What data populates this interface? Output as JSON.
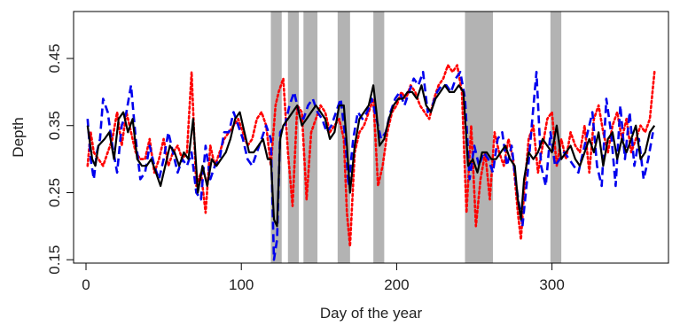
{
  "chart_data": {
    "type": "line",
    "xlabel": "Day of the year",
    "ylabel": "Depth",
    "xlim": [
      -8,
      375
    ],
    "ylim": [
      0.145,
      0.52
    ],
    "x_ticks": [
      0,
      100,
      200,
      300
    ],
    "x_tick_labels": [
      "0",
      "100",
      "200",
      "300"
    ],
    "y_ticks": [
      0.15,
      0.25,
      0.35,
      0.45
    ],
    "y_tick_labels": [
      "0.15",
      "0.25",
      "0.35",
      "0.45"
    ],
    "grid": false,
    "legend": "none",
    "shaded_intervals": [
      {
        "start": 119,
        "end": 126
      },
      {
        "start": 130,
        "end": 137
      },
      {
        "start": 140,
        "end": 149
      },
      {
        "start": 162,
        "end": 170
      },
      {
        "start": 185,
        "end": 192
      },
      {
        "start": 244,
        "end": 262
      },
      {
        "start": 299,
        "end": 306
      }
    ],
    "shade_color": "#b3b3b3",
    "series": [
      {
        "style": "solid",
        "color": "#000000",
        "x": [
          1,
          4,
          6,
          8,
          12,
          15,
          18,
          21,
          24,
          27,
          30,
          33,
          36,
          39,
          42,
          45,
          48,
          51,
          54,
          57,
          60,
          63,
          66,
          69,
          72,
          75,
          78,
          81,
          84,
          87,
          90,
          93,
          96,
          99,
          102,
          105,
          108,
          111,
          114,
          117,
          119,
          121,
          123,
          125,
          127,
          130,
          133,
          136,
          139,
          142,
          145,
          148,
          151,
          154,
          157,
          160,
          163,
          166,
          168,
          170,
          173,
          176,
          179,
          182,
          185,
          187,
          189,
          192,
          195,
          198,
          201,
          204,
          207,
          210,
          213,
          216,
          219,
          222,
          225,
          228,
          231,
          234,
          237,
          240,
          243,
          246,
          249,
          252,
          255,
          258,
          261,
          264,
          267,
          270,
          273,
          276,
          278,
          280,
          282,
          285,
          288,
          291,
          294,
          297,
          300,
          303,
          306,
          309,
          312,
          315,
          318,
          321,
          324,
          327,
          330,
          333,
          336,
          339,
          342,
          345,
          348,
          351,
          354,
          357,
          360,
          363,
          366
        ],
        "y": [
          0.35,
          0.3,
          0.29,
          0.32,
          0.33,
          0.34,
          0.3,
          0.36,
          0.37,
          0.34,
          0.36,
          0.3,
          0.29,
          0.29,
          0.3,
          0.28,
          0.26,
          0.29,
          0.32,
          0.31,
          0.29,
          0.31,
          0.3,
          0.36,
          0.25,
          0.29,
          0.26,
          0.3,
          0.29,
          0.3,
          0.31,
          0.33,
          0.36,
          0.37,
          0.34,
          0.31,
          0.31,
          0.32,
          0.33,
          0.3,
          0.3,
          0.21,
          0.2,
          0.33,
          0.35,
          0.36,
          0.37,
          0.38,
          0.35,
          0.36,
          0.37,
          0.38,
          0.37,
          0.36,
          0.33,
          0.34,
          0.38,
          0.38,
          0.32,
          0.25,
          0.32,
          0.36,
          0.37,
          0.38,
          0.41,
          0.37,
          0.32,
          0.33,
          0.36,
          0.38,
          0.39,
          0.39,
          0.4,
          0.4,
          0.39,
          0.41,
          0.38,
          0.37,
          0.39,
          0.4,
          0.41,
          0.4,
          0.4,
          0.41,
          0.4,
          0.29,
          0.3,
          0.28,
          0.31,
          0.31,
          0.3,
          0.3,
          0.31,
          0.32,
          0.3,
          0.29,
          0.24,
          0.21,
          0.27,
          0.31,
          0.3,
          0.31,
          0.33,
          0.32,
          0.31,
          0.35,
          0.3,
          0.31,
          0.32,
          0.3,
          0.29,
          0.31,
          0.33,
          0.31,
          0.34,
          0.29,
          0.33,
          0.34,
          0.3,
          0.33,
          0.31,
          0.33,
          0.35,
          0.3,
          0.31,
          0.34,
          0.35
        ]
      },
      {
        "style": "dashed",
        "color": "#0000ee",
        "x": [
          1,
          3,
          5,
          7,
          9,
          11,
          14,
          17,
          20,
          23,
          26,
          29,
          32,
          35,
          38,
          41,
          44,
          47,
          50,
          53,
          56,
          59,
          62,
          65,
          68,
          71,
          74,
          77,
          80,
          83,
          86,
          89,
          92,
          95,
          98,
          101,
          104,
          107,
          110,
          113,
          116,
          119,
          121,
          123,
          125,
          128,
          131,
          134,
          137,
          140,
          143,
          146,
          149,
          152,
          155,
          158,
          161,
          164,
          167,
          169,
          172,
          175,
          178,
          181,
          184,
          187,
          190,
          193,
          196,
          199,
          202,
          205,
          208,
          211,
          214,
          217,
          220,
          223,
          226,
          229,
          232,
          235,
          238,
          241,
          244,
          247,
          250,
          253,
          256,
          259,
          262,
          265,
          268,
          271,
          274,
          277,
          279,
          281,
          284,
          287,
          290,
          293,
          296,
          299,
          302,
          305,
          308,
          311,
          314,
          317,
          320,
          323,
          326,
          329,
          332,
          335,
          338,
          341,
          344,
          347,
          350,
          353,
          356,
          359,
          362,
          365
        ],
        "y": [
          0.36,
          0.3,
          0.27,
          0.31,
          0.33,
          0.39,
          0.37,
          0.32,
          0.28,
          0.35,
          0.37,
          0.41,
          0.33,
          0.27,
          0.28,
          0.32,
          0.29,
          0.27,
          0.3,
          0.34,
          0.31,
          0.28,
          0.3,
          0.29,
          0.31,
          0.25,
          0.24,
          0.32,
          0.27,
          0.29,
          0.3,
          0.34,
          0.34,
          0.37,
          0.35,
          0.33,
          0.3,
          0.29,
          0.31,
          0.33,
          0.35,
          0.33,
          0.15,
          0.18,
          0.34,
          0.35,
          0.38,
          0.4,
          0.37,
          0.36,
          0.38,
          0.39,
          0.37,
          0.36,
          0.34,
          0.35,
          0.37,
          0.39,
          0.33,
          0.26,
          0.33,
          0.37,
          0.36,
          0.37,
          0.39,
          0.36,
          0.33,
          0.34,
          0.37,
          0.39,
          0.4,
          0.38,
          0.4,
          0.42,
          0.41,
          0.43,
          0.37,
          0.38,
          0.4,
          0.41,
          0.41,
          0.4,
          0.42,
          0.43,
          0.39,
          0.27,
          0.32,
          0.29,
          0.31,
          0.3,
          0.28,
          0.33,
          0.34,
          0.29,
          0.32,
          0.26,
          0.23,
          0.2,
          0.27,
          0.35,
          0.43,
          0.29,
          0.26,
          0.34,
          0.29,
          0.3,
          0.31,
          0.3,
          0.29,
          0.28,
          0.31,
          0.34,
          0.37,
          0.29,
          0.26,
          0.39,
          0.34,
          0.26,
          0.38,
          0.3,
          0.37,
          0.29,
          0.33,
          0.27,
          0.3,
          0.34
        ]
      },
      {
        "style": "dotted",
        "color": "#ff0000",
        "x": [
          1,
          3,
          5,
          8,
          11,
          14,
          17,
          20,
          23,
          26,
          29,
          32,
          35,
          38,
          41,
          44,
          47,
          50,
          53,
          56,
          59,
          62,
          65,
          68,
          71,
          74,
          77,
          80,
          83,
          86,
          89,
          92,
          95,
          98,
          101,
          104,
          107,
          110,
          113,
          116,
          119,
          122,
          124,
          127,
          130,
          133,
          136,
          139,
          142,
          145,
          148,
          151,
          154,
          157,
          160,
          163,
          166,
          168,
          170,
          173,
          176,
          179,
          182,
          185,
          188,
          191,
          194,
          197,
          200,
          203,
          206,
          209,
          212,
          215,
          218,
          221,
          224,
          227,
          230,
          233,
          236,
          239,
          242,
          245,
          248,
          251,
          254,
          257,
          260,
          263,
          266,
          269,
          272,
          275,
          278,
          280,
          282,
          285,
          288,
          291,
          294,
          297,
          300,
          303,
          306,
          309,
          312,
          315,
          318,
          321,
          324,
          327,
          330,
          333,
          336,
          339,
          342,
          345,
          348,
          351,
          354,
          357,
          360,
          363,
          366
        ],
        "y": [
          0.29,
          0.34,
          0.31,
          0.3,
          0.29,
          0.31,
          0.33,
          0.37,
          0.32,
          0.37,
          0.34,
          0.31,
          0.3,
          0.3,
          0.33,
          0.28,
          0.3,
          0.33,
          0.29,
          0.31,
          0.32,
          0.3,
          0.31,
          0.43,
          0.26,
          0.28,
          0.22,
          0.32,
          0.29,
          0.31,
          0.33,
          0.34,
          0.35,
          0.36,
          0.34,
          0.32,
          0.33,
          0.36,
          0.37,
          0.35,
          0.29,
          0.38,
          0.4,
          0.42,
          0.31,
          0.23,
          0.38,
          0.37,
          0.24,
          0.34,
          0.36,
          0.38,
          0.37,
          0.34,
          0.35,
          0.36,
          0.33,
          0.22,
          0.17,
          0.31,
          0.34,
          0.35,
          0.37,
          0.39,
          0.26,
          0.29,
          0.34,
          0.37,
          0.38,
          0.4,
          0.39,
          0.41,
          0.4,
          0.38,
          0.37,
          0.36,
          0.39,
          0.41,
          0.42,
          0.44,
          0.43,
          0.44,
          0.4,
          0.22,
          0.35,
          0.2,
          0.27,
          0.31,
          0.24,
          0.34,
          0.31,
          0.29,
          0.33,
          0.3,
          0.22,
          0.18,
          0.25,
          0.33,
          0.35,
          0.28,
          0.32,
          0.36,
          0.37,
          0.29,
          0.33,
          0.3,
          0.34,
          0.32,
          0.31,
          0.35,
          0.28,
          0.36,
          0.38,
          0.34,
          0.31,
          0.35,
          0.37,
          0.33,
          0.36,
          0.31,
          0.33,
          0.35,
          0.34,
          0.36,
          0.43
        ]
      }
    ]
  }
}
